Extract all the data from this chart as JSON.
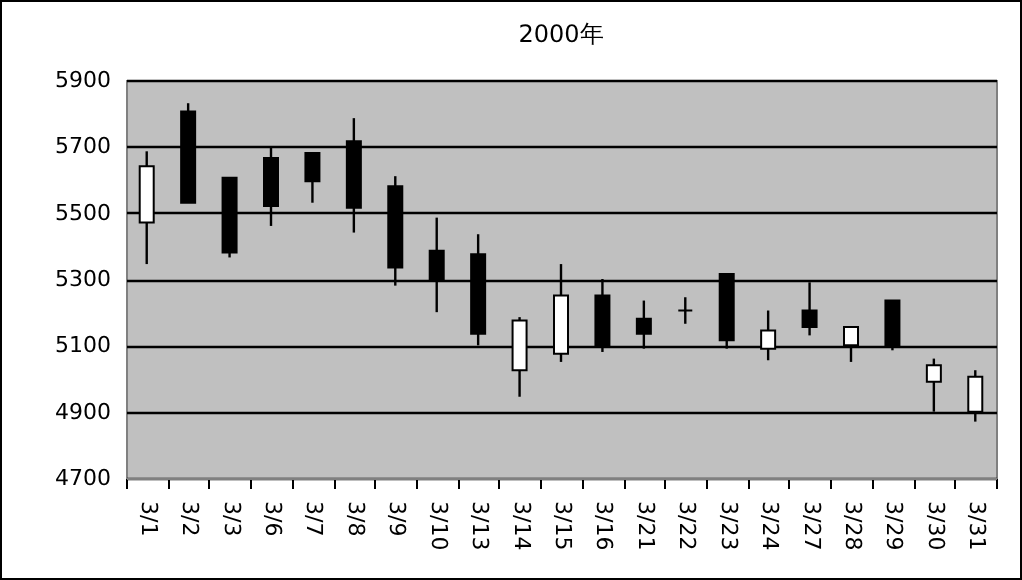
{
  "chart_data": {
    "type": "candlestick",
    "title": "2000年",
    "categories": [
      "3/1",
      "3/2",
      "3/3",
      "3/6",
      "3/7",
      "3/8",
      "3/9",
      "3/10",
      "3/13",
      "3/14",
      "3/15",
      "3/16",
      "3/21",
      "3/22",
      "3/23",
      "3/24",
      "3/27",
      "3/28",
      "3/29",
      "3/30",
      "3/31"
    ],
    "ohlc": [
      [
        5470,
        5685,
        5345,
        5640
      ],
      [
        5805,
        5830,
        5530,
        5530
      ],
      [
        5605,
        5605,
        5365,
        5380
      ],
      [
        5665,
        5700,
        5460,
        5520
      ],
      [
        5680,
        5680,
        5530,
        5595
      ],
      [
        5715,
        5785,
        5440,
        5515
      ],
      [
        5580,
        5610,
        5280,
        5335
      ],
      [
        5385,
        5485,
        5200,
        5300
      ],
      [
        5375,
        5435,
        5100,
        5135
      ],
      [
        5025,
        5185,
        4945,
        5175
      ],
      [
        5075,
        5345,
        5050,
        5250
      ],
      [
        5250,
        5300,
        5080,
        5100
      ],
      [
        5180,
        5235,
        5090,
        5135
      ],
      [
        5205,
        5245,
        5165,
        5205
      ],
      [
        5315,
        5315,
        5090,
        5115
      ],
      [
        5090,
        5205,
        5055,
        5145
      ],
      [
        5205,
        5290,
        5130,
        5155
      ],
      [
        5100,
        5155,
        5050,
        5155
      ],
      [
        5235,
        5235,
        5085,
        5100
      ],
      [
        4990,
        5060,
        4900,
        5040
      ],
      [
        4900,
        5025,
        4870,
        5005
      ]
    ],
    "ylim": [
      4700,
      5900
    ],
    "yticks": [
      4700,
      4900,
      5100,
      5300,
      5500,
      5700,
      5900
    ],
    "grid": "y"
  }
}
